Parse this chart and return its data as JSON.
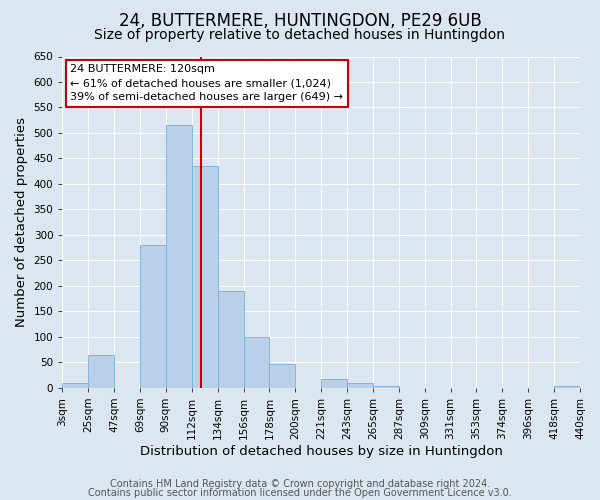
{
  "title": "24, BUTTERMERE, HUNTINGDON, PE29 6UB",
  "subtitle": "Size of property relative to detached houses in Huntingdon",
  "xlabel": "Distribution of detached houses by size in Huntingdon",
  "ylabel": "Number of detached properties",
  "footnote1": "Contains HM Land Registry data © Crown copyright and database right 2024.",
  "footnote2": "Contains public sector information licensed under the Open Government Licence v3.0.",
  "bin_labels": [
    "3sqm",
    "25sqm",
    "47sqm",
    "69sqm",
    "90sqm",
    "112sqm",
    "134sqm",
    "156sqm",
    "178sqm",
    "200sqm",
    "221sqm",
    "243sqm",
    "265sqm",
    "287sqm",
    "309sqm",
    "331sqm",
    "353sqm",
    "374sqm",
    "396sqm",
    "418sqm",
    "440sqm"
  ],
  "counts": [
    10,
    65,
    0,
    280,
    515,
    435,
    190,
    100,
    46,
    0,
    18,
    10,
    3,
    0,
    0,
    0,
    0,
    0,
    0,
    3
  ],
  "bar_color": "#b8d0e8",
  "bar_edge_color": "#7aafd4",
  "vline_bin": 5,
  "vline_color": "#cc0000",
  "annotation_title": "24 BUTTERMERE: 120sqm",
  "annotation_line1": "← 61% of detached houses are smaller (1,024)",
  "annotation_line2": "39% of semi-detached houses are larger (649) →",
  "annotation_box_color": "#ffffff",
  "annotation_box_edge": "#cc0000",
  "ylim": [
    0,
    650
  ],
  "yticks": [
    0,
    50,
    100,
    150,
    200,
    250,
    300,
    350,
    400,
    450,
    500,
    550,
    600,
    650
  ],
  "background_color": "#dce6f0",
  "plot_bg_color": "#dce6f0",
  "grid_color": "#ffffff",
  "title_fontsize": 12,
  "subtitle_fontsize": 10,
  "label_fontsize": 9.5,
  "tick_fontsize": 7.5,
  "footnote_fontsize": 7
}
